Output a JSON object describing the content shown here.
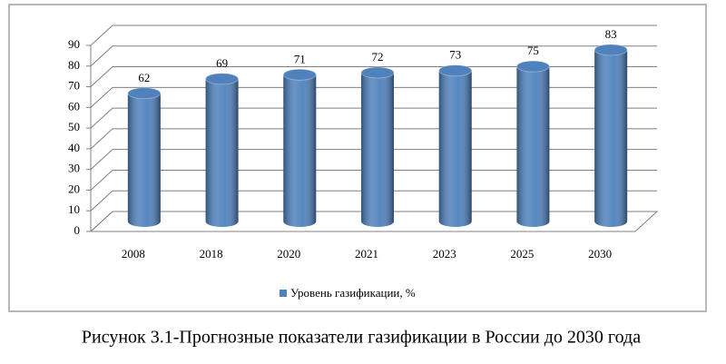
{
  "chart_data": {
    "type": "bar",
    "categories": [
      "2008",
      "2018",
      "2020",
      "2021",
      "2023",
      "2025",
      "2030"
    ],
    "series": [
      {
        "name": "Уровень газификации, %",
        "color": "#4f81bd",
        "values": [
          62,
          69,
          71,
          72,
          73,
          75,
          83
        ]
      }
    ],
    "ylim": [
      0,
      90
    ],
    "yticks": [
      0,
      10,
      20,
      30,
      40,
      50,
      60,
      70,
      80,
      90
    ],
    "grid": true,
    "legend": "bottom"
  },
  "caption": "Рисунок 3.1-Прогнозные показатели газификации в России до 2030 года"
}
